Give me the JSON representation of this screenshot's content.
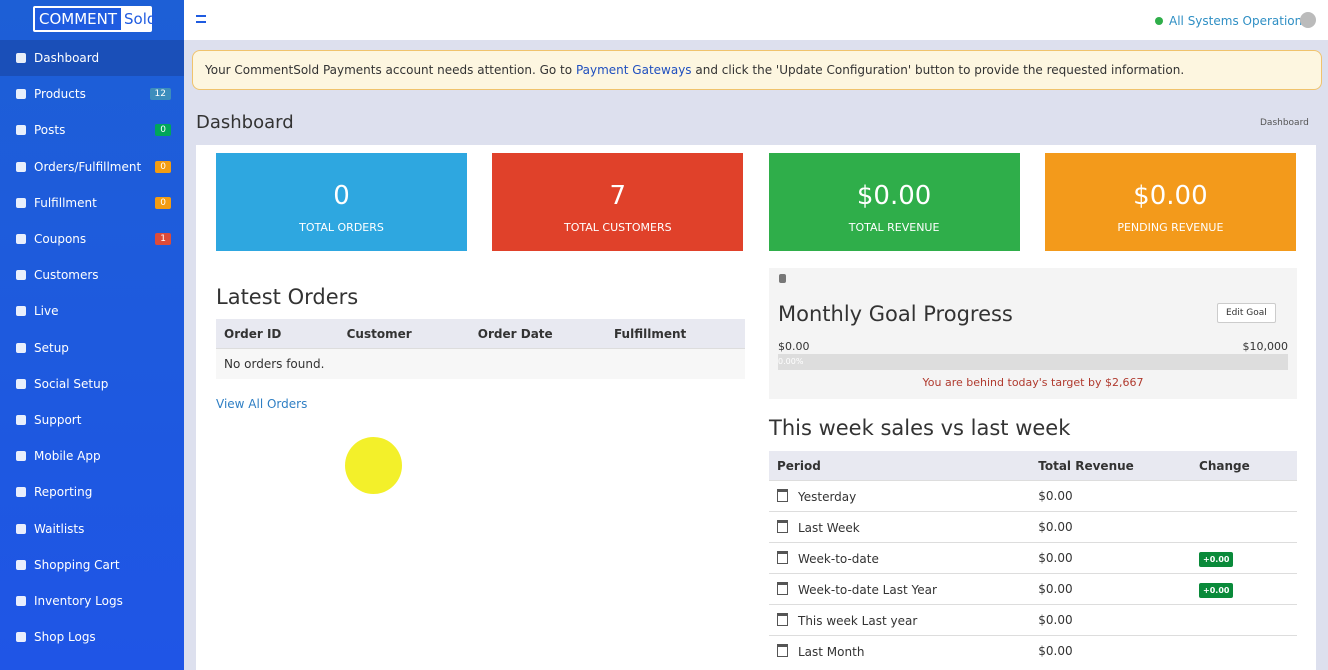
{
  "logo": {
    "comment": "COMMENT",
    "sold": "Sold"
  },
  "sidebar": [
    {
      "label": "Dashboard",
      "active": true
    },
    {
      "label": "Products",
      "badge": "12",
      "badge_color": "#3c8dbc"
    },
    {
      "label": "Posts",
      "badge": "0",
      "badge_color": "#00a65a"
    },
    {
      "label": "Orders/Fulfillment",
      "badge": "0",
      "badge_color": "#f39c12"
    },
    {
      "label": "Fulfillment",
      "badge": "0",
      "badge_color": "#f39c12"
    },
    {
      "label": "Coupons",
      "badge": "1",
      "badge_color": "#dd4b39"
    },
    {
      "label": "Customers"
    },
    {
      "label": "Live"
    },
    {
      "label": "Setup"
    },
    {
      "label": "Social Setup"
    },
    {
      "label": "Support"
    },
    {
      "label": "Mobile App"
    },
    {
      "label": "Reporting"
    },
    {
      "label": "Waitlists"
    },
    {
      "label": "Shopping Cart"
    },
    {
      "label": "Inventory Logs"
    },
    {
      "label": "Shop Logs"
    }
  ],
  "topbar": {
    "status": "All Systems Operational"
  },
  "alert": {
    "before": "Your CommentSold Payments account needs attention. Go to",
    "link": "Payment Gateways",
    "after": "and click the 'Update Configuration' button to provide the requested information."
  },
  "page": {
    "title": "Dashboard",
    "breadcrumb": "Dashboard"
  },
  "stats": [
    {
      "value": "0",
      "label": "TOTAL ORDERS",
      "color": "#2ea7e0"
    },
    {
      "value": "7",
      "label": "TOTAL CUSTOMERS",
      "color": "#e0412a"
    },
    {
      "value": "$0.00",
      "label": "TOTAL REVENUE",
      "color": "#2fae4a"
    },
    {
      "value": "$0.00",
      "label": "PENDING REVENUE",
      "color": "#f39a1b"
    }
  ],
  "latest_orders": {
    "title": "Latest Orders",
    "columns": [
      "Order ID",
      "Customer",
      "Order Date",
      "Fulfillment"
    ],
    "empty": "No orders found.",
    "link": "View All Orders"
  },
  "goal": {
    "title": "Monthly Goal Progress",
    "button": "Edit Goal",
    "min": "$0.00",
    "max": "$10,000",
    "percent": "0.00%",
    "message": "You are behind today's target by $2,667"
  },
  "weekly": {
    "title": "This week sales vs last week",
    "columns": [
      "Period",
      "Total Revenue",
      "Change"
    ],
    "rows": [
      {
        "period": "Yesterday",
        "revenue": "$0.00"
      },
      {
        "period": "Last Week",
        "revenue": "$0.00"
      },
      {
        "period": "Week-to-date",
        "revenue": "$0.00",
        "change": "+0.00"
      },
      {
        "period": "Week-to-date Last Year",
        "revenue": "$0.00",
        "change": "+0.00"
      },
      {
        "period": "This week Last year",
        "revenue": "$0.00"
      },
      {
        "period": "Last Month",
        "revenue": "$0.00"
      }
    ]
  }
}
